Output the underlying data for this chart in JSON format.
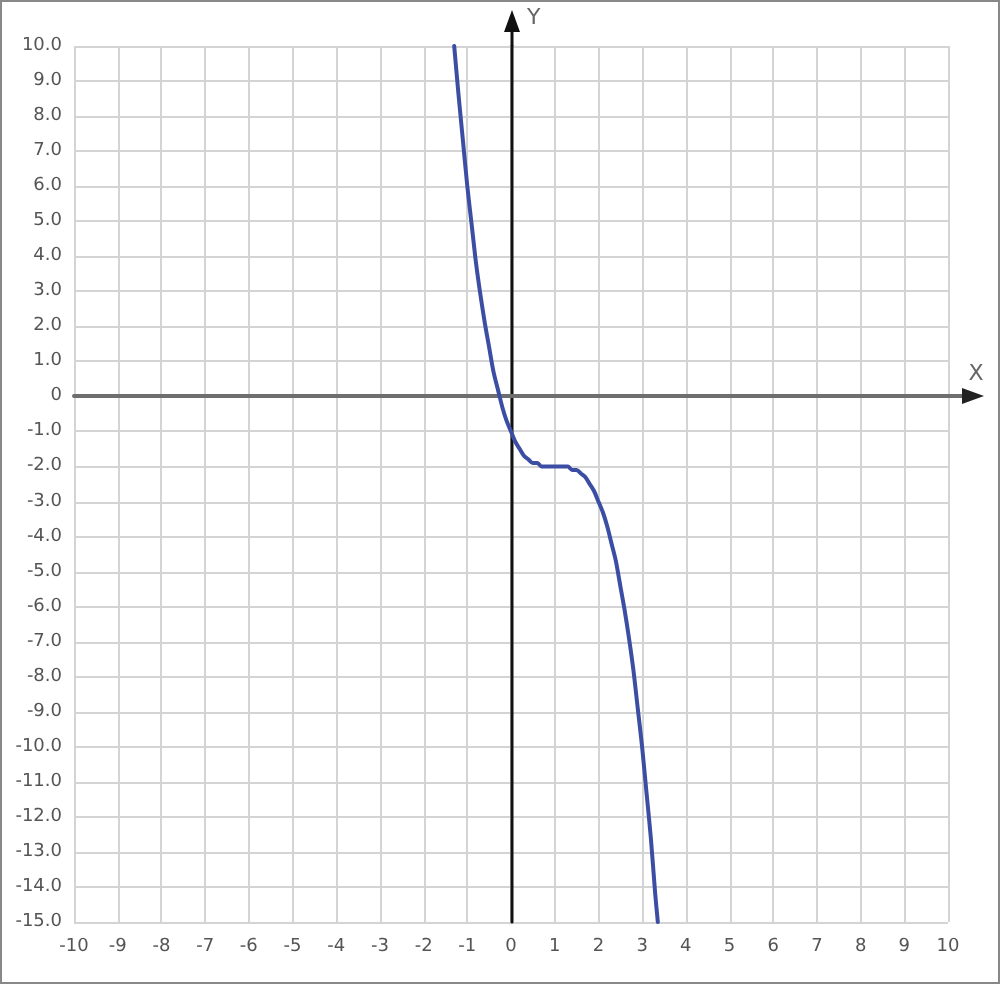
{
  "chart_data": {
    "type": "line",
    "xlabel": "X",
    "ylabel": "Y",
    "x": [
      -1.3,
      -1.2,
      -1.1,
      -1.0,
      -0.9,
      -0.8,
      -0.7,
      -0.6,
      -0.5,
      -0.4,
      -0.3,
      -0.2,
      -0.1,
      0,
      0.1,
      0.2,
      0.3,
      0.4,
      0.5,
      0.6,
      0.7,
      0.8,
      0.9,
      1.0,
      1.1,
      1.2,
      1.3,
      1.4,
      1.5,
      1.6,
      1.7,
      1.8,
      1.9,
      2.0,
      2.1,
      2.2,
      2.3,
      2.4,
      2.5,
      2.6,
      2.7,
      2.8,
      2.9,
      3.0,
      3.1,
      3.2,
      3.3,
      3.36
    ],
    "values": [
      10.0,
      8.6,
      7.3,
      6.0,
      4.9,
      3.8,
      2.9,
      2.1,
      1.4,
      0.7,
      0.2,
      -0.3,
      -0.7,
      -1.0,
      -1.3,
      -1.5,
      -1.7,
      -1.8,
      -1.9,
      -1.9,
      -2.0,
      -2.0,
      -2.0,
      -2.0,
      -2.0,
      -2.0,
      -2.0,
      -2.1,
      -2.1,
      -2.2,
      -2.3,
      -2.5,
      -2.7,
      -3.0,
      -3.3,
      -3.7,
      -4.2,
      -4.7,
      -5.4,
      -6.1,
      -6.9,
      -7.8,
      -8.9,
      -10.0,
      -11.3,
      -12.6,
      -14.2,
      -15.0
    ],
    "color": "#3b4ea3",
    "line_style": "solid",
    "marker": "none",
    "grid": true,
    "xlim": [
      -10,
      10
    ],
    "ylim": [
      -15,
      10
    ],
    "xticks": [
      -10,
      -9,
      -8,
      -7,
      -6,
      -5,
      -4,
      -3,
      -2,
      -1,
      0,
      1,
      2,
      3,
      4,
      5,
      6,
      7,
      8,
      9,
      10
    ],
    "yticks": [
      {
        "value": 10,
        "label": "10.0"
      },
      {
        "value": 9,
        "label": "9.0"
      },
      {
        "value": 8,
        "label": "8.0"
      },
      {
        "value": 7,
        "label": "7.0"
      },
      {
        "value": 6,
        "label": "6.0"
      },
      {
        "value": 5,
        "label": "5.0"
      },
      {
        "value": 4,
        "label": "4.0"
      },
      {
        "value": 3,
        "label": "3.0"
      },
      {
        "value": 2,
        "label": "2.0"
      },
      {
        "value": 1,
        "label": "1.0"
      },
      0,
      {
        "value": -1,
        "label": "-1.0"
      },
      {
        "value": -2,
        "label": "-2.0"
      },
      {
        "value": -3,
        "label": "-3.0"
      },
      {
        "value": -4,
        "label": "-4.0"
      },
      {
        "value": -5,
        "label": "-5.0"
      },
      {
        "value": -6,
        "label": "-6.0"
      },
      {
        "value": -7,
        "label": "-7.0"
      },
      {
        "value": -8,
        "label": "-8.0"
      },
      {
        "value": -9,
        "label": "-9.0"
      },
      {
        "value": -10,
        "label": "-10.0"
      },
      {
        "value": -11,
        "label": "-11.0"
      },
      {
        "value": -12,
        "label": "-12.0"
      },
      {
        "value": -13,
        "label": "-13.0"
      },
      {
        "value": -14,
        "label": "-14.0"
      },
      {
        "value": -15,
        "label": "-15.0"
      }
    ]
  }
}
